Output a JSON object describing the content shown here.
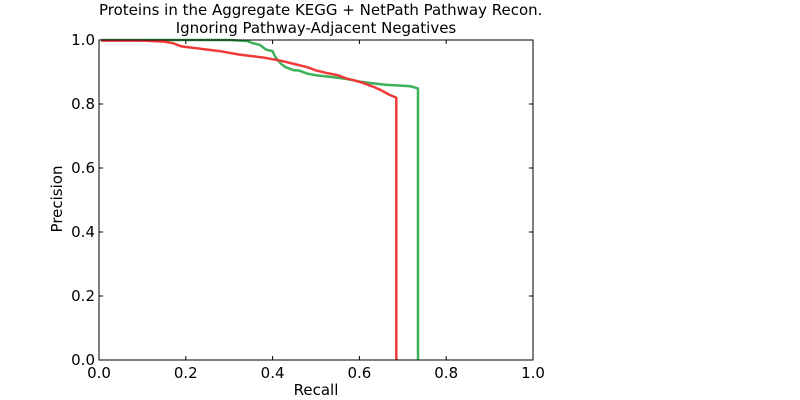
{
  "chart_data": {
    "type": "line",
    "title": [
      "Proteins in the Aggregate KEGG + NetPath Pathway Recon.",
      "Ignoring Pathway-Adjacent Negatives"
    ],
    "xlabel": "Recall",
    "ylabel": "Precision",
    "xlim": [
      0.0,
      1.0
    ],
    "ylim": [
      0.0,
      1.0
    ],
    "xticks": [
      "0.0",
      "0.2",
      "0.4",
      "0.6",
      "0.8",
      "1.0"
    ],
    "yticks": [
      "0.0",
      "0.2",
      "0.4",
      "0.6",
      "0.8",
      "1.0"
    ],
    "grid": false,
    "legend": null,
    "series": [
      {
        "color": "#3cb05a",
        "x": [
          0.005,
          0.05,
          0.1,
          0.15,
          0.2,
          0.25,
          0.3,
          0.34,
          0.355,
          0.37,
          0.385,
          0.4,
          0.405,
          0.41,
          0.42,
          0.43,
          0.44,
          0.45,
          0.46,
          0.48,
          0.5,
          0.52,
          0.55,
          0.58,
          0.6,
          0.63,
          0.66,
          0.7,
          0.72,
          0.735,
          0.735
        ],
        "y": [
          1.0,
          1.0,
          1.0,
          1.0,
          1.0,
          1.0,
          1.0,
          0.997,
          0.99,
          0.985,
          0.97,
          0.965,
          0.95,
          0.94,
          0.925,
          0.915,
          0.91,
          0.905,
          0.905,
          0.895,
          0.89,
          0.887,
          0.882,
          0.876,
          0.87,
          0.865,
          0.86,
          0.857,
          0.855,
          0.848,
          0.0
        ]
      },
      {
        "color": "#f03a3a",
        "x": [
          0.005,
          0.1,
          0.15,
          0.17,
          0.19,
          0.22,
          0.25,
          0.28,
          0.3,
          0.32,
          0.35,
          0.38,
          0.4,
          0.42,
          0.45,
          0.48,
          0.5,
          0.52,
          0.55,
          0.57,
          0.59,
          0.61,
          0.63,
          0.65,
          0.67,
          0.685,
          0.685
        ],
        "y": [
          0.998,
          0.998,
          0.995,
          0.99,
          0.98,
          0.975,
          0.97,
          0.965,
          0.96,
          0.955,
          0.95,
          0.945,
          0.94,
          0.935,
          0.925,
          0.915,
          0.905,
          0.898,
          0.89,
          0.88,
          0.873,
          0.865,
          0.855,
          0.843,
          0.828,
          0.82,
          0.0
        ]
      }
    ]
  }
}
